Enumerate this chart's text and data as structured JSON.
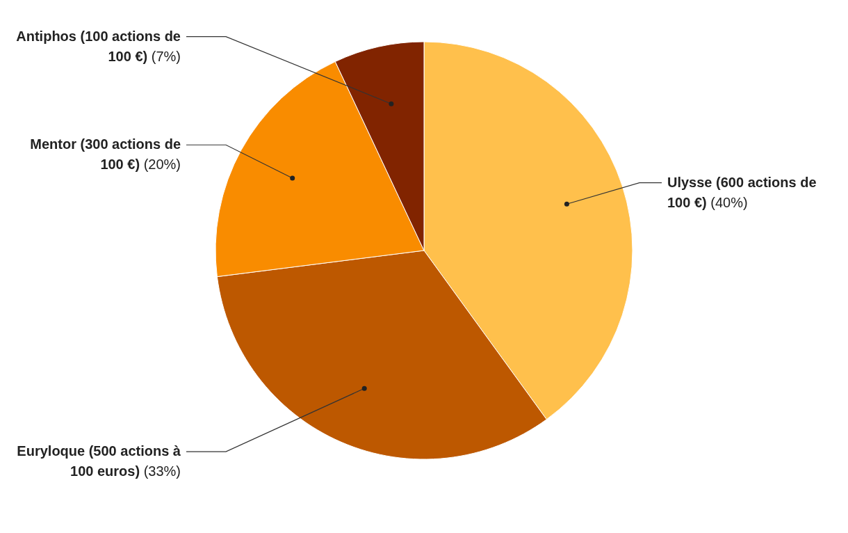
{
  "chart_data": {
    "type": "pie",
    "categories": [
      "Ulysse (600 actions de 100 €)",
      "Euryloque (500 actions à 100 euros)",
      "Mentor (300 actions de 100 €)",
      "Antiphos (100 actions de 100 €)"
    ],
    "values": [
      40,
      33,
      20,
      7
    ],
    "value_labels": [
      "(40%)",
      "(33%)",
      "(20%)",
      "(7%)"
    ],
    "colors": [
      "#ffc04c",
      "#bd5800",
      "#f98c00",
      "#812400"
    ]
  }
}
